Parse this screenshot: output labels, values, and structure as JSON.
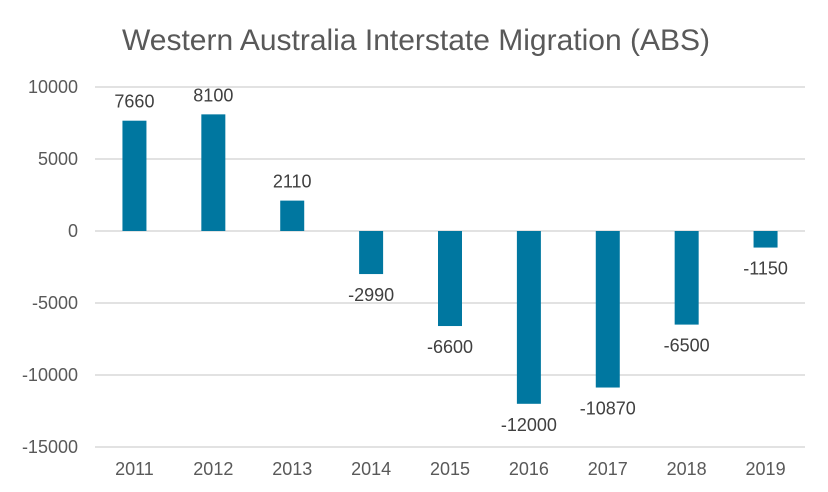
{
  "chart_data": {
    "type": "bar",
    "title": "Western Australia Interstate Migration (ABS)",
    "xlabel": "",
    "ylabel": "",
    "categories": [
      "2011",
      "2012",
      "2013",
      "2014",
      "2015",
      "2016",
      "2017",
      "2018",
      "2019"
    ],
    "values": [
      7660,
      8100,
      2110,
      -2990,
      -6600,
      -12000,
      -10870,
      -6500,
      -1150
    ],
    "ylim": [
      -15000,
      10000
    ],
    "yticks": [
      10000,
      5000,
      0,
      -5000,
      -10000,
      -15000
    ],
    "grid": true,
    "legend": "none",
    "data_labels": true,
    "bar_color": "#0077A0"
  }
}
